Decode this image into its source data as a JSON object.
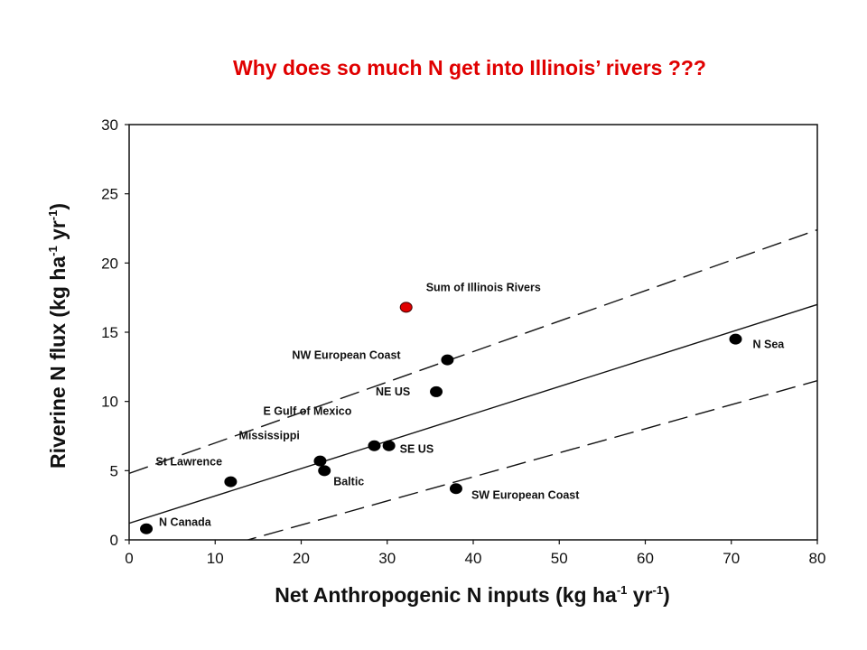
{
  "slide": {
    "title": "Why does so much N get into Illinois’ rivers ???",
    "title_color": "#e00000"
  },
  "chart_data": {
    "type": "scatter",
    "title": "Why does so much N get into Illinois’ rivers ???",
    "xlabel": {
      "main": "Net Anthropogenic N inputs (kg ha",
      "sup1": "-1",
      "mid": " yr",
      "sup2": "-1",
      "end": ")"
    },
    "ylabel": {
      "main": "Riverine N flux (kg ha",
      "sup1": "-1",
      "mid": " yr",
      "sup2": "-1",
      "end": ")"
    },
    "xlim": [
      0,
      80
    ],
    "ylim": [
      0,
      30
    ],
    "xticks": [
      "0",
      "10",
      "20",
      "30",
      "40",
      "50",
      "60",
      "70",
      "80"
    ],
    "yticks": [
      "0",
      "5",
      "10",
      "15",
      "20",
      "25",
      "30"
    ],
    "grid": false,
    "points": [
      {
        "x": 2,
        "y": 0.8,
        "label": "N Canada",
        "color": "#000000"
      },
      {
        "x": 11.8,
        "y": 4.2,
        "label": "St Lawrence",
        "color": "#000000"
      },
      {
        "x": 22.2,
        "y": 5.7,
        "label": "Mississippi",
        "color": "#000000"
      },
      {
        "x": 22.7,
        "y": 5.0,
        "label": "Baltic",
        "color": "#000000"
      },
      {
        "x": 28.5,
        "y": 6.8,
        "label": "E Gulf of Mexico",
        "color": "#000000"
      },
      {
        "x": 30.2,
        "y": 6.8,
        "label": "SE US",
        "color": "#000000"
      },
      {
        "x": 35.7,
        "y": 10.7,
        "label": "NE US",
        "color": "#000000"
      },
      {
        "x": 37.0,
        "y": 13.0,
        "label": "NW European Coast",
        "color": "#000000"
      },
      {
        "x": 38.0,
        "y": 3.7,
        "label": "SW European Coast",
        "color": "#000000"
      },
      {
        "x": 70.5,
        "y": 14.5,
        "label": "N Sea",
        "color": "#000000"
      },
      {
        "x": 32.2,
        "y": 16.8,
        "label": "Sum of Illinois Rivers",
        "color": "#e00000"
      }
    ],
    "regression": {
      "x": [
        0,
        80
      ],
      "y": [
        1.2,
        17.0
      ]
    },
    "confidence_bands": [
      {
        "x": [
          0,
          80
        ],
        "y": [
          4.8,
          22.4
        ]
      },
      {
        "x": [
          0,
          80
        ],
        "y": [
          -2.4,
          11.5
        ]
      }
    ]
  }
}
